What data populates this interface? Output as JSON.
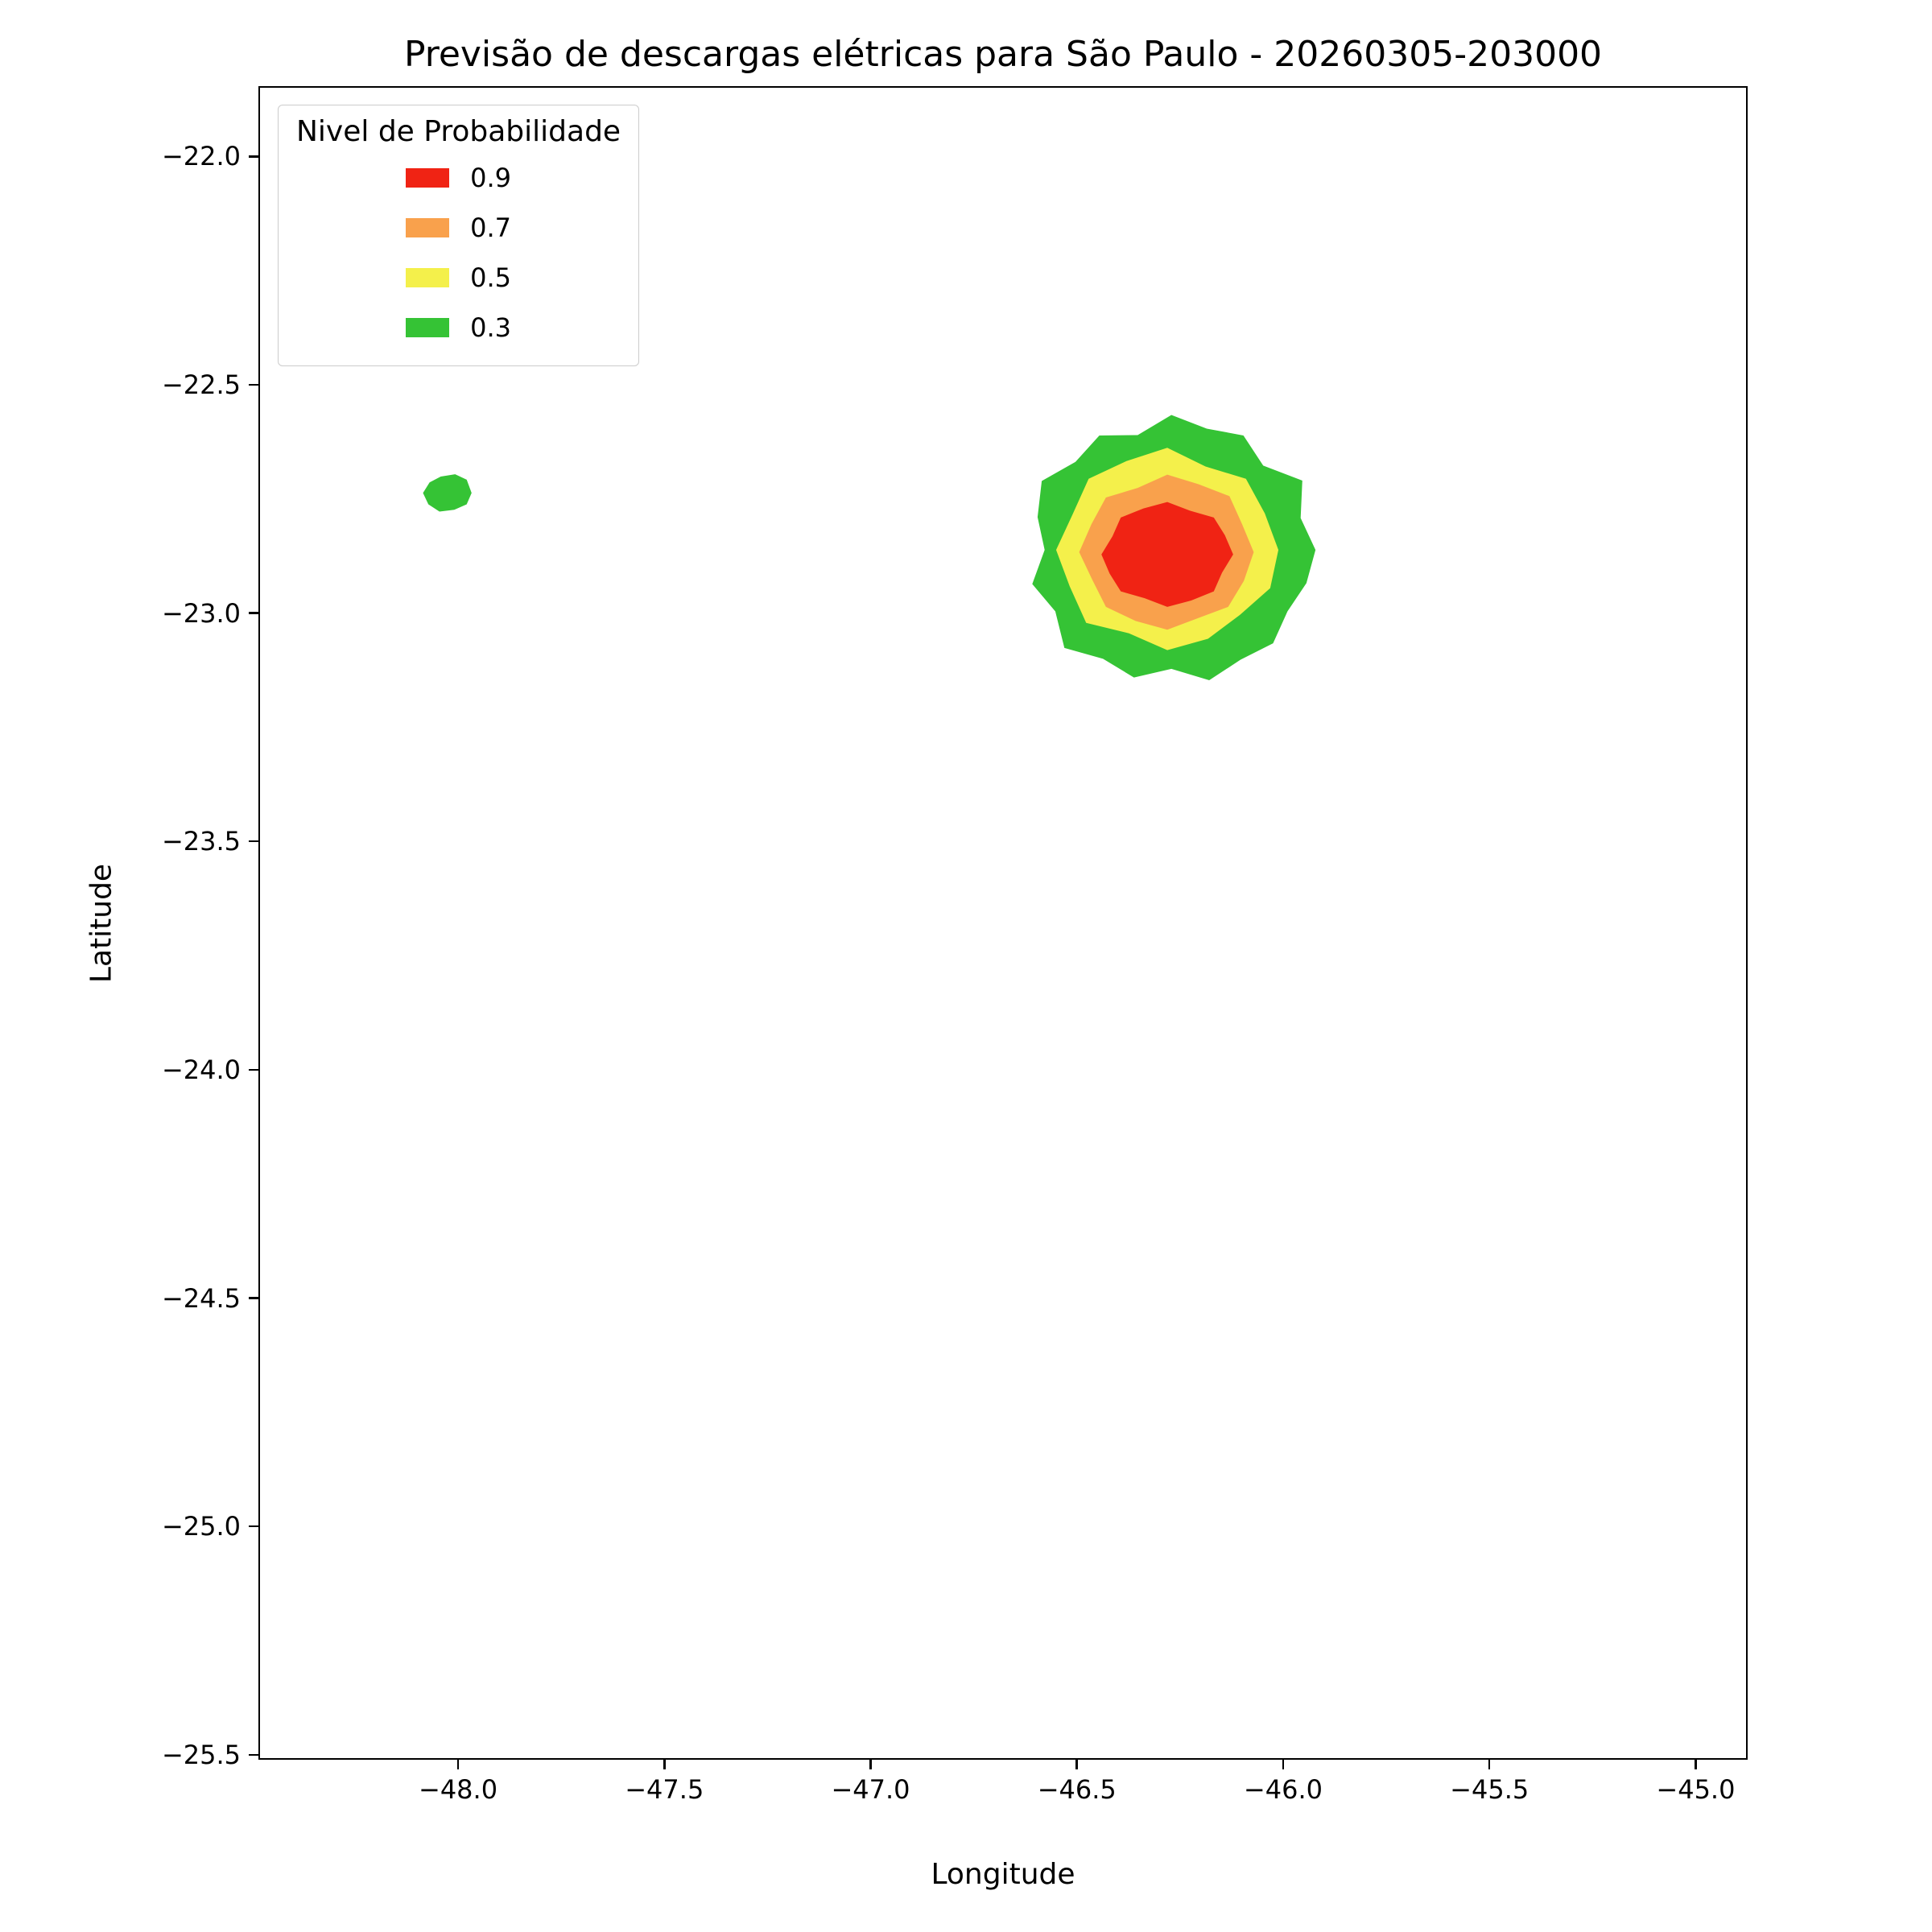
{
  "chart_data": {
    "type": "contour",
    "title": "Previsão de descargas elétricas para São Paulo - 20260305-203000",
    "xlabel": "Longitude",
    "ylabel": "Latitude",
    "xlim": [
      -48.484,
      -44.874
    ],
    "ylim": [
      -25.511,
      -21.846
    ],
    "grid": false,
    "xticks": [
      -48.0,
      -47.5,
      -47.0,
      -46.5,
      -46.0,
      -45.5,
      -45.0
    ],
    "xtick_labels": [
      "−48.0",
      "−47.5",
      "−47.0",
      "−46.5",
      "−46.0",
      "−45.5",
      "−45.0"
    ],
    "yticks": [
      -22.0,
      -22.5,
      -23.0,
      -23.5,
      -24.0,
      -24.5,
      -25.0,
      -25.5
    ],
    "ytick_labels": [
      "−22.0",
      "−22.5",
      "−23.0",
      "−23.5",
      "−24.0",
      "−24.5",
      "−25.0",
      "−25.5"
    ],
    "levels": [
      0.3,
      0.5,
      0.7,
      0.9
    ],
    "level_colors": {
      "0.3": "#35c335",
      "0.5": "#f4f04b",
      "0.7": "#f9a14c",
      "0.9": "#f02314"
    },
    "legend": {
      "title": "Nivel de Probabilidade",
      "position": "upper left",
      "items": [
        {
          "label": "0.9",
          "color": "#f02314"
        },
        {
          "label": "0.7",
          "color": "#f9a14c"
        },
        {
          "label": "0.5",
          "color": "#f4f04b"
        },
        {
          "label": "0.3",
          "color": "#35c335"
        }
      ]
    },
    "regions": [
      {
        "name": "main-cell-level-0.3",
        "level": 0.3,
        "color": "#35c335",
        "points": [
          [
            -45.92,
            -22.86
          ],
          [
            -45.956,
            -22.79
          ],
          [
            -45.952,
            -22.708
          ],
          [
            -46.047,
            -22.675
          ],
          [
            -46.095,
            -22.609
          ],
          [
            -46.184,
            -22.594
          ],
          [
            -46.27,
            -22.564
          ],
          [
            -46.352,
            -22.608
          ],
          [
            -46.445,
            -22.609
          ],
          [
            -46.503,
            -22.667
          ],
          [
            -46.585,
            -22.709
          ],
          [
            -46.595,
            -22.788
          ],
          [
            -46.578,
            -22.86
          ],
          [
            -46.608,
            -22.935
          ],
          [
            -46.552,
            -22.995
          ],
          [
            -46.53,
            -23.075
          ],
          [
            -46.436,
            -23.099
          ],
          [
            -46.361,
            -23.14
          ],
          [
            -46.27,
            -23.121
          ],
          [
            -46.178,
            -23.146
          ],
          [
            -46.102,
            -23.101
          ],
          [
            -46.023,
            -23.065
          ],
          [
            -45.988,
            -22.995
          ],
          [
            -45.942,
            -22.933
          ]
        ]
      },
      {
        "name": "main-cell-level-0.5",
        "level": 0.5,
        "color": "#f4f04b",
        "points": [
          [
            -46.01,
            -22.86
          ],
          [
            -46.043,
            -22.78
          ],
          [
            -46.089,
            -22.704
          ],
          [
            -46.187,
            -22.677
          ],
          [
            -46.28,
            -22.636
          ],
          [
            -46.379,
            -22.665
          ],
          [
            -46.471,
            -22.704
          ],
          [
            -46.51,
            -22.782
          ],
          [
            -46.55,
            -22.86
          ],
          [
            -46.517,
            -22.94
          ],
          [
            -46.477,
            -23.02
          ],
          [
            -46.373,
            -23.043
          ],
          [
            -46.28,
            -23.08
          ],
          [
            -46.181,
            -23.055
          ],
          [
            -46.104,
            -23.003
          ],
          [
            -46.03,
            -22.944
          ]
        ]
      },
      {
        "name": "main-cell-level-0.7",
        "level": 0.7,
        "color": "#f9a14c",
        "points": [
          [
            -46.07,
            -22.865
          ],
          [
            -46.098,
            -22.804
          ],
          [
            -46.129,
            -22.742
          ],
          [
            -46.204,
            -22.716
          ],
          [
            -46.28,
            -22.695
          ],
          [
            -46.352,
            -22.724
          ],
          [
            -46.429,
            -22.745
          ],
          [
            -46.464,
            -22.803
          ],
          [
            -46.494,
            -22.865
          ],
          [
            -46.462,
            -22.926
          ],
          [
            -46.429,
            -22.985
          ],
          [
            -46.357,
            -23.016
          ],
          [
            -46.28,
            -23.035
          ],
          [
            -46.206,
            -23.01
          ],
          [
            -46.132,
            -22.985
          ],
          [
            -46.094,
            -22.928
          ]
        ]
      },
      {
        "name": "main-cell-level-0.9",
        "level": 0.9,
        "color": "#f02314",
        "points": [
          [
            -46.12,
            -22.87
          ],
          [
            -46.14,
            -22.828
          ],
          [
            -46.167,
            -22.789
          ],
          [
            -46.225,
            -22.774
          ],
          [
            -46.28,
            -22.755
          ],
          [
            -46.338,
            -22.769
          ],
          [
            -46.393,
            -22.789
          ],
          [
            -46.413,
            -22.83
          ],
          [
            -46.44,
            -22.87
          ],
          [
            -46.42,
            -22.912
          ],
          [
            -46.393,
            -22.951
          ],
          [
            -46.335,
            -22.966
          ],
          [
            -46.28,
            -22.985
          ],
          [
            -46.222,
            -22.971
          ],
          [
            -46.167,
            -22.951
          ],
          [
            -46.147,
            -22.91
          ]
        ]
      },
      {
        "name": "west-cell-level-0.3",
        "level": 0.3,
        "color": "#35c335",
        "points": [
          [
            -47.97,
            -22.735
          ],
          [
            -47.982,
            -22.706
          ],
          [
            -48.01,
            -22.694
          ],
          [
            -48.045,
            -22.699
          ],
          [
            -48.072,
            -22.712
          ],
          [
            -48.088,
            -22.735
          ],
          [
            -48.075,
            -22.76
          ],
          [
            -48.048,
            -22.776
          ],
          [
            -48.012,
            -22.772
          ],
          [
            -47.982,
            -22.76
          ]
        ]
      }
    ]
  }
}
